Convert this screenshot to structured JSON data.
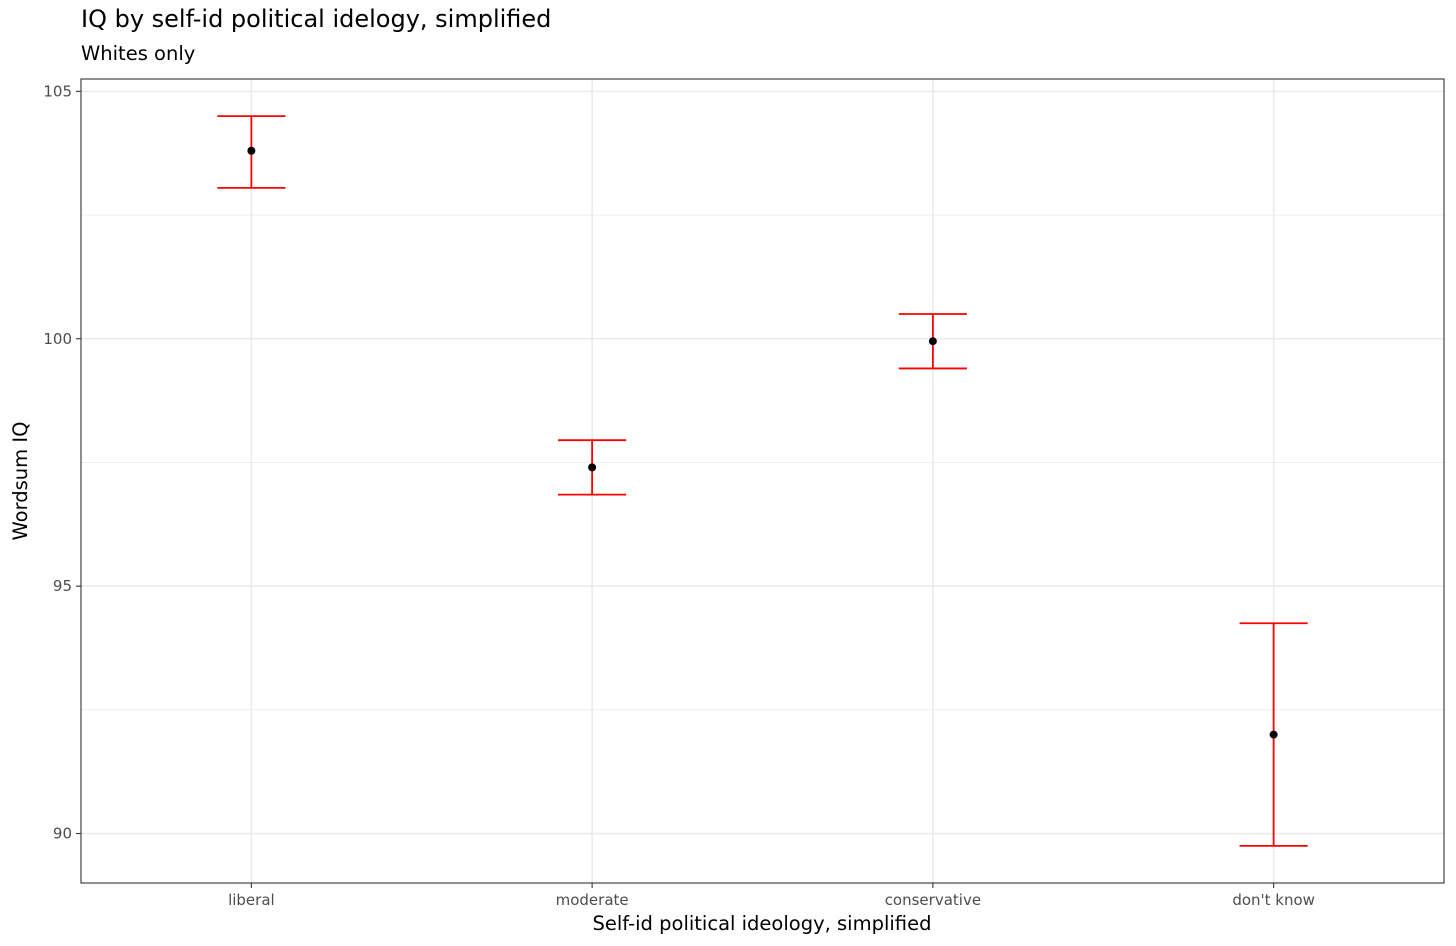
{
  "chart_data": {
    "type": "scatter",
    "title": "IQ by self-id political idelogy, simplified",
    "subtitle": "Whites only",
    "xlabel": "Self-id political ideology, simplified",
    "ylabel": "Wordsum IQ",
    "categories": [
      "liberal",
      "moderate",
      "conservative",
      "don't know"
    ],
    "values": [
      103.8,
      97.4,
      99.95,
      92.0
    ],
    "error_low": [
      103.05,
      96.85,
      99.4,
      89.75
    ],
    "error_high": [
      104.5,
      97.95,
      100.5,
      94.25
    ],
    "ylim": [
      89.0,
      105.25
    ],
    "yticks": [
      90,
      95,
      100,
      105
    ],
    "grid": true,
    "point_color": "#000000",
    "errorbar_color": "#ff0000",
    "grid_color": "#ebebeb"
  }
}
